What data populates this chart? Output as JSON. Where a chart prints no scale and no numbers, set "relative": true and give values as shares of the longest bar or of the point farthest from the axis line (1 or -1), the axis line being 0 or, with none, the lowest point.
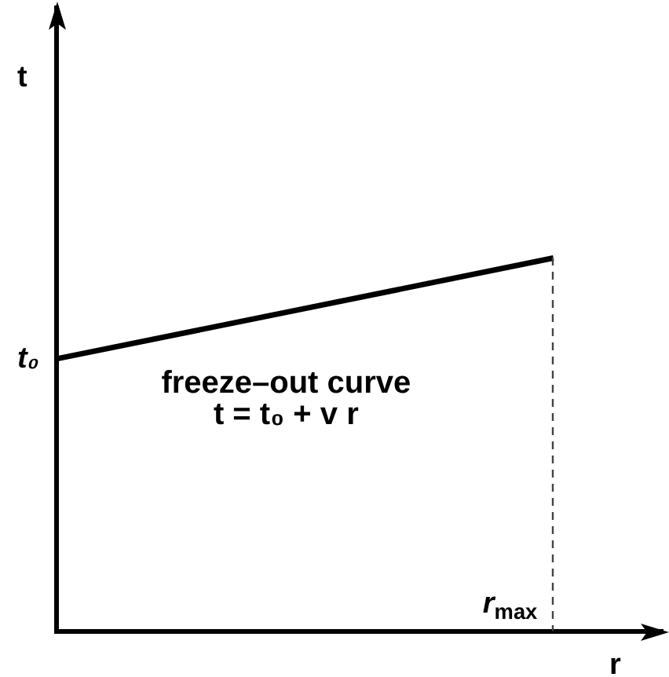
{
  "chart_data": {
    "type": "line",
    "xlabel": "r",
    "categories": [
      null,
      null
    ],
    "values": [
      0.73,
      1
    ],
    "color": "#000000",
    "relative": true,
    "marker": "none",
    "annotations": [
      "t",
      "t₀",
      "freeze–out curve\nt = t₀ + v r",
      "r$_{max}$"
    ]
  }
}
